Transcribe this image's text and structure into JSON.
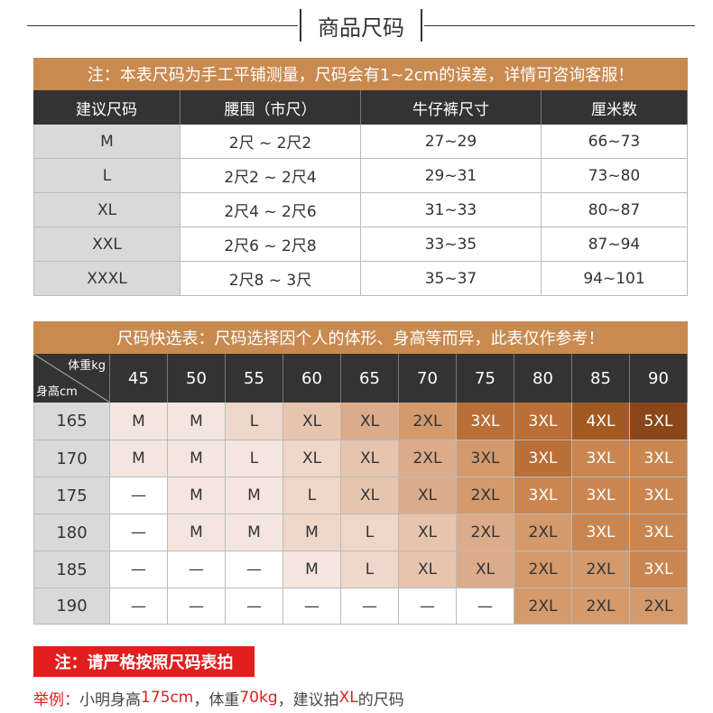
{
  "title": "商品尺码",
  "table1": {
    "note": "注：本表尺码为手工平铺测量，尺码会有1~2cm的误差，详情可咨询客服！",
    "header": [
      "建议尺码",
      "腰围（市尺）",
      "牛仔裤尺寸",
      "厘米数"
    ],
    "rows": [
      [
        "M",
        "2尺 ~ 2尺2",
        "27~29",
        "66~73"
      ],
      [
        "L",
        "2尺2 ~ 2尺4",
        "29~31",
        "73~80"
      ],
      [
        "XL",
        "2尺4 ~ 2尺6",
        "31~33",
        "80~87"
      ],
      [
        "XXL",
        "2尺6 ~ 2尺8",
        "33~35",
        "87~94"
      ],
      [
        "XXXL",
        "2尺8 ~ 3尺",
        "35~37",
        "94~101"
      ]
    ]
  },
  "table2": {
    "note": "尺码快选表：尺码选择因个人的体形、身高等而异，此表仅作参考！",
    "corner": {
      "top": "体重kg",
      "bottom": "身高cm"
    },
    "weights": [
      45,
      50,
      55,
      60,
      65,
      70,
      75,
      80,
      85,
      90
    ],
    "rows": [
      {
        "height": 165,
        "sizes": [
          "M",
          "M",
          "L",
          "XL",
          "XL",
          "2XL",
          "3XL",
          "3XL",
          "4XL",
          "5XL"
        ]
      },
      {
        "height": 170,
        "sizes": [
          "M",
          "M",
          "L",
          "XL",
          "XL",
          "2XL",
          "3XL",
          "3XL",
          "3XL",
          "3XL"
        ]
      },
      {
        "height": 175,
        "sizes": [
          "—",
          "M",
          "M",
          "L",
          "XL",
          "XL",
          "2XL",
          "3XL",
          "3XL",
          "3XL"
        ]
      },
      {
        "height": 180,
        "sizes": [
          "—",
          "M",
          "M",
          "M",
          "L",
          "XL",
          "2XL",
          "2XL",
          "3XL",
          "3XL"
        ]
      },
      {
        "height": 185,
        "sizes": [
          "—",
          "—",
          "—",
          "M",
          "L",
          "XL",
          "XL",
          "2XL",
          "2XL",
          "3XL"
        ]
      },
      {
        "height": 190,
        "sizes": [
          "—",
          "—",
          "—",
          "—",
          "—",
          "—",
          "—",
          "2XL",
          "2XL",
          "2XL"
        ]
      }
    ]
  },
  "warning": "注：请严格按照尺码表拍",
  "example": [
    "举例：",
    "小明身高",
    "175cm",
    "，体重",
    "70kg",
    "，建议拍",
    "XL",
    "的尺码"
  ]
}
